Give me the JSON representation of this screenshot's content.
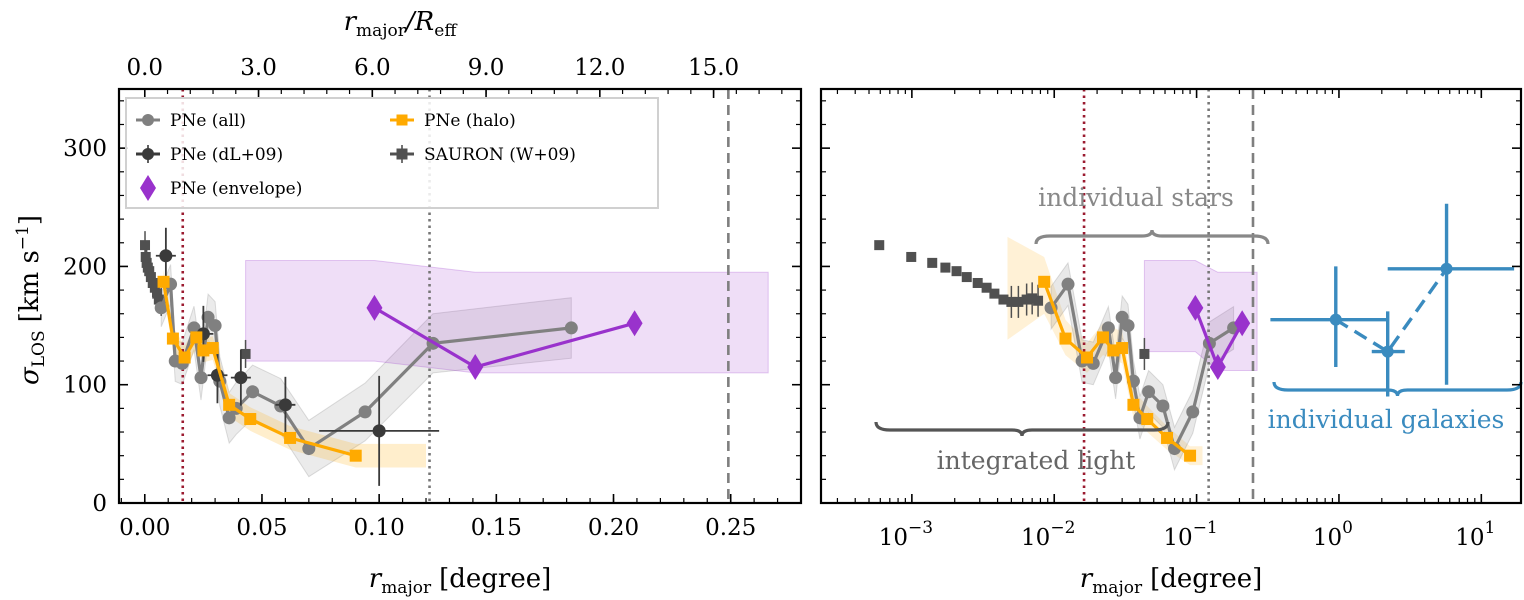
{
  "chart_data": [
    {
      "type": "line",
      "panel": "left",
      "xlabel": "r_major [degree]",
      "xlabel_main": "r",
      "xlabel_sub": "major",
      "xlabel_unit": "[degree]",
      "ylabel_main": "σ",
      "ylabel_sub": "LOS",
      "ylabel_unit": "[km s",
      "ylabel_sup": "−1",
      "ylabel_close": "]",
      "top_xlabel": "r_major / R_eff",
      "top_xlabel_main": "r",
      "top_xlabel_sub": "major",
      "top_xlabel_slash": "/R",
      "top_xlabel_sub2": "eff",
      "xlim": [
        -0.011,
        0.28
      ],
      "ylim": [
        0,
        350
      ],
      "x_ticks": [
        0.0,
        0.05,
        0.1,
        0.15,
        0.2,
        0.25
      ],
      "x_tick_labels": [
        "0.00",
        "0.05",
        "0.10",
        "0.15",
        "0.20",
        "0.25"
      ],
      "y_ticks": [
        0,
        100,
        200,
        300
      ],
      "y_tick_labels": [
        "0",
        "100",
        "200",
        "300"
      ],
      "top_ticks": [
        0.0,
        3.0,
        6.0,
        9.0,
        12.0,
        15.0
      ],
      "top_tick_labels": [
        "0.0",
        "3.0",
        "6.0",
        "9.0",
        "12.0",
        "15.0"
      ],
      "reff_deg": 0.01618,
      "vlines": [
        {
          "x": 0.0162,
          "style": "dotted",
          "color": "#9b1b30"
        },
        {
          "x": 0.1215,
          "style": "dotted",
          "color": "#777777"
        },
        {
          "x": 0.249,
          "style": "dashed",
          "color": "#7f7f7f"
        }
      ],
      "legend": {
        "position": "top-left",
        "entries": [
          {
            "label": "PNe (all)",
            "color": "#808080",
            "marker": "circle"
          },
          {
            "label": "PNe (halo)",
            "color": "#ffaa00",
            "marker": "square"
          },
          {
            "label": "PNe (dL+09)",
            "color": "#3a3a3a",
            "marker": "circle"
          },
          {
            "label": "SAURON (W+09)",
            "color": "#505050",
            "marker": "square"
          },
          {
            "label": "PNe (envelope)",
            "color": "#9932cc",
            "marker": "diamond"
          }
        ]
      },
      "series": [
        {
          "name": "PNe (all)",
          "color": "#808080",
          "x": [
            0.007,
            0.011,
            0.013,
            0.016,
            0.021,
            0.024,
            0.027,
            0.03,
            0.032,
            0.036,
            0.039,
            0.046,
            0.058,
            0.07,
            0.094,
            0.123,
            0.182
          ],
          "y": [
            165,
            185,
            120,
            118,
            148,
            106,
            157,
            150,
            103,
            72,
            80,
            94,
            82,
            46,
            77,
            135,
            148
          ]
        },
        {
          "name": "PNe (halo)",
          "color": "#ffaa00",
          "x": [
            0.008,
            0.012,
            0.017,
            0.022,
            0.025,
            0.029,
            0.036,
            0.045,
            0.062,
            0.09
          ],
          "y": [
            187,
            139,
            123,
            140,
            129,
            131,
            83,
            71,
            55,
            40
          ]
        },
        {
          "name": "PNe (dL+09)",
          "color": "#3a3a3a",
          "x": [
            0.009,
            0.025,
            0.031,
            0.041,
            0.06,
            0.1
          ],
          "y": [
            209,
            143,
            108,
            106,
            83,
            61
          ]
        },
        {
          "name": "SAURON (W+09)",
          "color": "#505050",
          "x": [
            0.0001,
            0.0004,
            0.0008,
            0.0013,
            0.0019,
            0.0026,
            0.0034,
            0.0043,
            0.0053,
            0.006,
            0.007,
            0.043
          ],
          "y": [
            218,
            208,
            203,
            199,
            196,
            191,
            186,
            182,
            177,
            172,
            170,
            126
          ]
        },
        {
          "name": "PNe (envelope)",
          "color": "#9932cc",
          "x": [
            0.098,
            0.141,
            0.209
          ],
          "y": [
            165,
            115,
            152
          ]
        }
      ]
    },
    {
      "type": "line",
      "panel": "right",
      "xscale": "log",
      "xlabel": "r_major [degree]",
      "xlabel_main": "r",
      "xlabel_sub": "major",
      "xlabel_unit": "[degree]",
      "xlim": [
        0.00023,
        19
      ],
      "ylim": [
        0,
        350
      ],
      "x_ticks": [
        0.001,
        0.01,
        0.1,
        1,
        10
      ],
      "x_tick_base": [
        "10",
        "10",
        "10",
        "10",
        "10"
      ],
      "x_tick_exp": [
        "−3",
        "−2",
        "−1",
        "0",
        "1"
      ],
      "vlines": [
        {
          "x": 0.0162,
          "style": "dotted",
          "color": "#9b1b30"
        },
        {
          "x": 0.1215,
          "style": "dotted",
          "color": "#777777"
        },
        {
          "x": 0.249,
          "style": "dashed",
          "color": "#7f7f7f"
        }
      ],
      "annotations": [
        {
          "text": "individual stars",
          "color": "#888888"
        },
        {
          "text": "integrated light",
          "color": "#666666"
        },
        {
          "text": "individual galaxies",
          "color": "#3a8bbf"
        }
      ],
      "series": [
        {
          "name": "SAURON (W+09)",
          "color": "#505050",
          "x": [
            0.00059,
            0.00099,
            0.00139,
            0.00172,
            0.00206,
            0.00243,
            0.0029,
            0.00335,
            0.0038,
            0.0044,
            0.005,
            0.0056,
            0.0064,
            0.007,
            0.0077,
            0.043
          ],
          "y": [
            218,
            208,
            203,
            199,
            196,
            191,
            186,
            182,
            177,
            172,
            170,
            170,
            172,
            173,
            171,
            126
          ]
        },
        {
          "name": "PNe (all)",
          "color": "#808080",
          "x": [
            0.0095,
            0.0125,
            0.0157,
            0.0188,
            0.024,
            0.027,
            0.03,
            0.033,
            0.036,
            0.04,
            0.046,
            0.058,
            0.07,
            0.094,
            0.123,
            0.182
          ],
          "y": [
            165,
            185,
            120,
            118,
            148,
            106,
            157,
            150,
            103,
            72,
            94,
            82,
            46,
            77,
            135,
            148
          ]
        },
        {
          "name": "PNe (halo)",
          "color": "#ffaa00",
          "x": [
            0.0085,
            0.012,
            0.017,
            0.022,
            0.026,
            0.03,
            0.036,
            0.045,
            0.062,
            0.09
          ],
          "y": [
            187,
            139,
            123,
            140,
            129,
            131,
            83,
            71,
            55,
            40
          ]
        },
        {
          "name": "PNe (envelope)",
          "color": "#9932cc",
          "x": [
            0.098,
            0.141,
            0.209
          ],
          "y": [
            165,
            115,
            152
          ]
        },
        {
          "name": "individual galaxies",
          "color": "#3a8bbf",
          "linestyle": "dashed",
          "x": [
            0.95,
            2.2,
            5.7
          ],
          "y": [
            155,
            128,
            198
          ]
        }
      ]
    }
  ]
}
